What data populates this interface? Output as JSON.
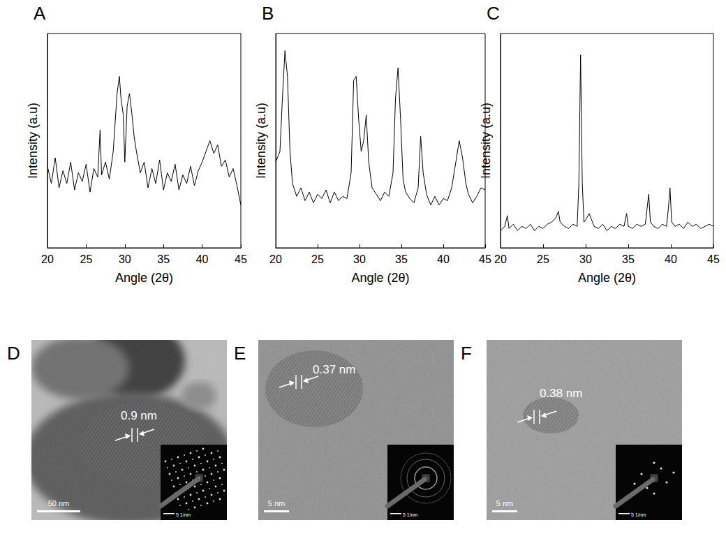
{
  "chart_data": [
    {
      "panel": "A",
      "type": "line",
      "x_label": "Angle (2θ)",
      "y_label": "Intensity (a.u)",
      "color": "#000000",
      "x": [
        20,
        20.5,
        21,
        21.5,
        22,
        22.5,
        23,
        23.5,
        24,
        24.5,
        25,
        25.5,
        26,
        26.5,
        26.8,
        27,
        27.5,
        28,
        28.5,
        29,
        29.3,
        29.5,
        29.8,
        30,
        30.3,
        30.6,
        30.9,
        31.2,
        31.5,
        32,
        32.5,
        33,
        33.5,
        34,
        34.5,
        35,
        35.5,
        36,
        36.5,
        37,
        37.5,
        38,
        38.5,
        39,
        39.5,
        40,
        40.5,
        41,
        41.5,
        42,
        42.5,
        43,
        43.5,
        44,
        44.5,
        45
      ],
      "values": [
        38,
        30,
        42,
        28,
        36,
        30,
        40,
        27,
        35,
        31,
        39,
        26,
        37,
        33,
        55,
        34,
        40,
        32,
        45,
        72,
        80,
        70,
        62,
        40,
        66,
        72,
        63,
        52,
        45,
        35,
        40,
        28,
        37,
        30,
        41,
        27,
        35,
        31,
        39,
        27,
        34,
        30,
        38,
        29,
        36,
        40,
        45,
        50,
        44,
        48,
        38,
        41,
        33,
        37,
        29,
        20
      ],
      "xlim": [
        20,
        45
      ],
      "xticks": [
        20,
        25,
        30,
        35,
        40,
        45
      ],
      "ylim": [
        0,
        100
      ],
      "tick_labels": "x",
      "grid": false
    },
    {
      "panel": "B",
      "type": "line",
      "x_label": "Angle (2θ)",
      "y_label": "Intensity (a.u)",
      "color": "#000000",
      "x": [
        20,
        20.5,
        20.8,
        21.1,
        21.4,
        21.7,
        22,
        22.5,
        23,
        23.5,
        24,
        24.5,
        25,
        25.5,
        26,
        26.5,
        27,
        27.5,
        28,
        28.5,
        29,
        29.3,
        29.6,
        29.9,
        30.2,
        30.5,
        30.8,
        31.1,
        31.5,
        32,
        32.5,
        33,
        33.5,
        34,
        34.3,
        34.6,
        34.9,
        35.2,
        35.5,
        36,
        36.5,
        37,
        37.3,
        37.6,
        38,
        38.5,
        39,
        39.5,
        40,
        40.5,
        41,
        41.5,
        41.9,
        42.3,
        42.7,
        43,
        43.5,
        44,
        44.5,
        45
      ],
      "values": [
        40,
        45,
        70,
        92,
        80,
        45,
        30,
        24,
        28,
        22,
        26,
        21,
        25,
        23,
        27,
        21,
        26,
        22,
        24,
        23,
        35,
        78,
        80,
        60,
        45,
        50,
        62,
        40,
        28,
        25,
        22,
        26,
        24,
        35,
        70,
        84,
        60,
        32,
        26,
        23,
        21,
        28,
        52,
        35,
        25,
        20,
        24,
        20,
        23,
        22,
        28,
        40,
        50,
        42,
        30,
        25,
        21,
        24,
        28,
        27
      ],
      "xlim": [
        20,
        45
      ],
      "xticks": [
        20,
        25,
        30,
        35,
        40,
        45
      ],
      "ylim": [
        0,
        100
      ],
      "tick_labels": "x",
      "grid": false
    },
    {
      "panel": "C",
      "type": "line",
      "x_label": "Angle (2θ)",
      "y_label": "Intensity (a.u)",
      "color": "#000000",
      "x": [
        20,
        20.5,
        20.8,
        21,
        21.5,
        22,
        22.5,
        23,
        23.5,
        24,
        24.5,
        25,
        25.5,
        26,
        26.5,
        26.8,
        27,
        27.5,
        28,
        28.5,
        29,
        29.2,
        29.4,
        29.6,
        29.8,
        30,
        30.4,
        30.8,
        31,
        31.5,
        32,
        32.5,
        33,
        33.5,
        34,
        34.5,
        34.8,
        35,
        35.5,
        36,
        36.5,
        37,
        37.2,
        37.4,
        37.6,
        38,
        38.5,
        39,
        39.5,
        39.7,
        39.9,
        40.1,
        40.5,
        41,
        41.5,
        42,
        42.5,
        43,
        43.5,
        44,
        44.5,
        45
      ],
      "values": [
        8,
        10,
        15,
        9,
        11,
        8,
        10,
        9,
        11,
        8,
        10,
        9,
        11,
        12,
        14,
        17,
        12,
        10,
        9,
        11,
        10,
        30,
        90,
        30,
        12,
        13,
        16,
        12,
        10,
        9,
        11,
        8,
        10,
        9,
        11,
        10,
        16,
        10,
        9,
        11,
        10,
        11,
        18,
        25,
        12,
        10,
        9,
        11,
        10,
        18,
        28,
        12,
        10,
        11,
        9,
        12,
        10,
        11,
        9,
        10,
        11,
        10
      ],
      "xlim": [
        20,
        45
      ],
      "xticks": [
        20,
        25,
        30,
        35,
        40,
        45
      ],
      "ylim": [
        0,
        100
      ],
      "tick_labels": "x",
      "grid": false
    }
  ],
  "images": [
    {
      "panel": "D",
      "spacing": "0.9 nm",
      "scale_bar": "50 nm",
      "inset_scale_bar": "5 1/nm"
    },
    {
      "panel": "E",
      "spacing": "0.37 nm",
      "scale_bar": "5 nm",
      "inset_scale_bar": "5 1/nm"
    },
    {
      "panel": "F",
      "spacing": "0.38 nm",
      "scale_bar": "5 nm",
      "inset_scale_bar": "5 1/nm"
    }
  ]
}
